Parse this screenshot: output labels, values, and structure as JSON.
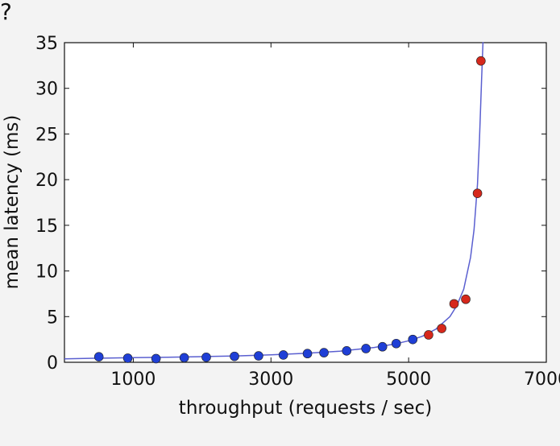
{
  "corner_mark": "?",
  "chart_data": {
    "type": "scatter",
    "xlabel": "throughput (requests / sec)",
    "ylabel": "mean latency (ms)",
    "xlim": [
      0,
      7000
    ],
    "ylim": [
      0,
      35
    ],
    "x_ticks": [
      1000,
      3000,
      5000,
      7000
    ],
    "x_tick_labels": [
      "1000",
      "3000",
      "5000",
      "7000"
    ],
    "y_ticks": [
      0,
      5,
      10,
      15,
      20,
      25,
      30,
      35
    ],
    "y_tick_labels": [
      "0",
      "5",
      "10",
      "15",
      "20",
      "25",
      "30",
      "35"
    ],
    "grid": false,
    "colors": {
      "fit_line": "#5a5fd0",
      "blue_points": "#1f3fd6",
      "red_points": "#d6281c"
    },
    "series": [
      {
        "color": "#1f3fd6",
        "points": [
          {
            "x": 500,
            "y": 0.6
          },
          {
            "x": 920,
            "y": 0.45
          },
          {
            "x": 1330,
            "y": 0.4
          },
          {
            "x": 1740,
            "y": 0.5
          },
          {
            "x": 2060,
            "y": 0.55
          },
          {
            "x": 2470,
            "y": 0.65
          },
          {
            "x": 2820,
            "y": 0.7
          },
          {
            "x": 3180,
            "y": 0.8
          },
          {
            "x": 3530,
            "y": 0.95
          },
          {
            "x": 3770,
            "y": 1.05
          },
          {
            "x": 4100,
            "y": 1.25
          },
          {
            "x": 4380,
            "y": 1.5
          },
          {
            "x": 4620,
            "y": 1.7
          },
          {
            "x": 4820,
            "y": 2.05
          },
          {
            "x": 5060,
            "y": 2.5
          }
        ]
      },
      {
        "color": "#d6281c",
        "points": [
          {
            "x": 5290,
            "y": 3.0
          },
          {
            "x": 5480,
            "y": 3.7
          },
          {
            "x": 5660,
            "y": 6.4
          },
          {
            "x": 5830,
            "y": 6.9
          },
          {
            "x": 6000,
            "y": 18.5
          },
          {
            "x": 6050,
            "y": 33.0
          }
        ]
      }
    ],
    "fit_curve": {
      "x": [
        0,
        500,
        1000,
        1500,
        2000,
        2500,
        3000,
        3500,
        4000,
        4500,
        4800,
        5000,
        5200,
        5400,
        5600,
        5700,
        5800,
        5900,
        5950,
        6000,
        6030,
        6060,
        6080,
        6090
      ],
      "y": [
        0.38,
        0.45,
        0.5,
        0.55,
        0.62,
        0.7,
        0.82,
        0.98,
        1.22,
        1.62,
        2.0,
        2.35,
        2.85,
        3.65,
        5.0,
        6.2,
        8.0,
        11.5,
        14.5,
        19.5,
        24.5,
        31.0,
        35.0,
        35.0
      ]
    }
  }
}
